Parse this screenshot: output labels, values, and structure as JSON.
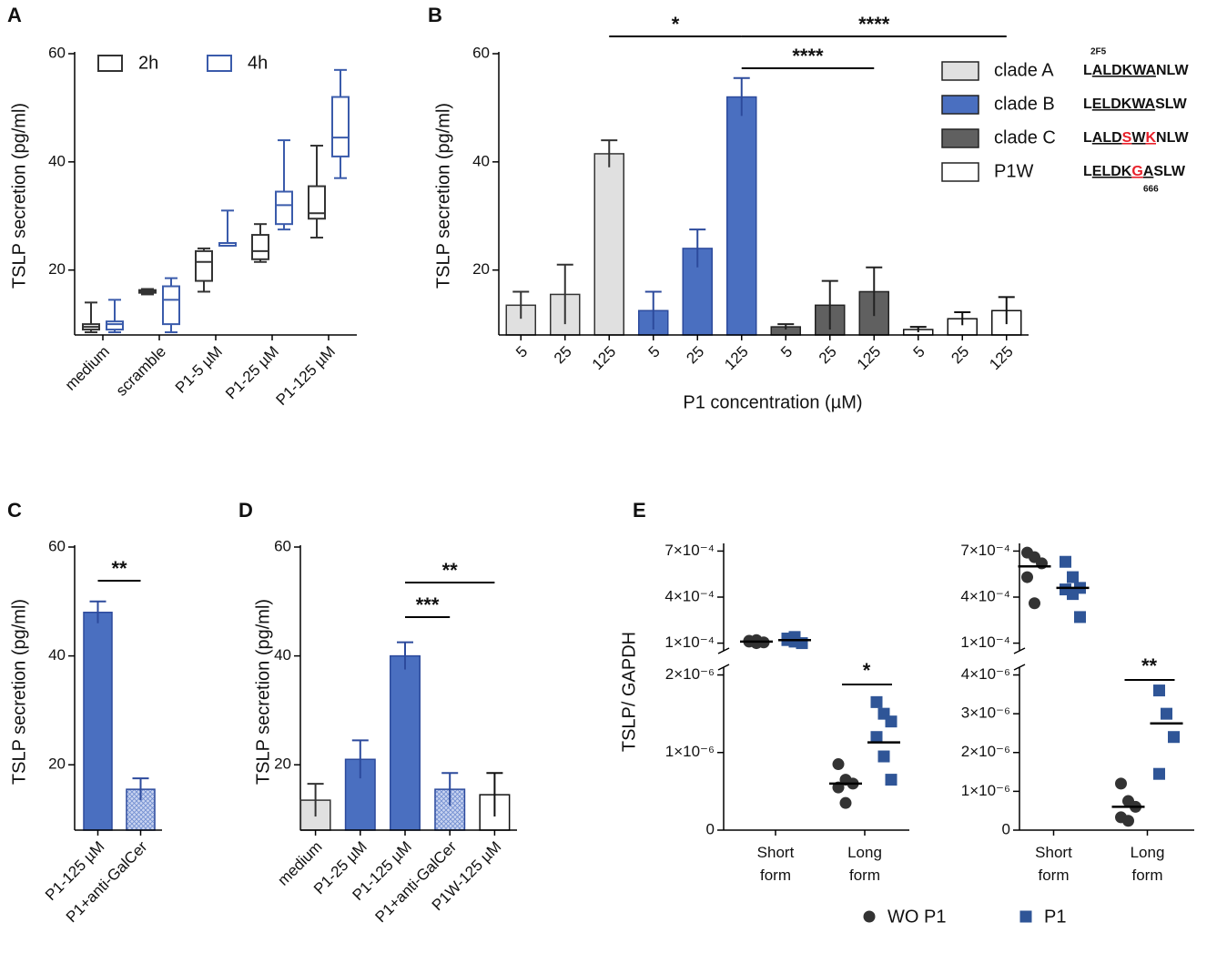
{
  "chart_data": [
    {
      "type": "box",
      "panel_label": "A",
      "ylabel": "TSLP secretion (pg/ml)",
      "categories": [
        "medium",
        "scramble",
        "P1-5 µM",
        "P1-25 µM",
        "P1-125 µM"
      ],
      "series": [
        {
          "name": "2h",
          "color": "#333333",
          "values": [
            [
              8.5,
              9,
              9.5,
              10,
              14
            ],
            [
              15.5,
              15.8,
              16,
              16.3,
              16.5
            ],
            [
              16,
              18,
              21.5,
              23.5,
              24
            ],
            [
              21.5,
              22,
              23.5,
              26.5,
              28.5
            ],
            [
              26,
              29.5,
              30.5,
              35.5,
              43
            ]
          ]
        },
        {
          "name": "4h",
          "color": "#3a5bab",
          "values": [
            [
              8.5,
              9,
              10,
              10.5,
              14.5
            ],
            [
              8.5,
              10,
              14.5,
              17,
              18.5
            ],
            [
              24.5,
              24.5,
              25,
              25,
              31
            ],
            [
              27.5,
              28.5,
              32,
              34.5,
              44
            ],
            [
              37,
              41,
              44.5,
              52,
              57
            ]
          ]
        }
      ],
      "ylim": [
        8,
        60
      ],
      "yticks": [
        20,
        40,
        60
      ]
    },
    {
      "type": "bar",
      "panel_label": "B",
      "ylabel": "TSLP secretion (pg/ml)",
      "xlabel": "P1 concentration (µM)",
      "categories": [
        "5",
        "25",
        "125",
        "5",
        "25",
        "125",
        "5",
        "25",
        "125",
        "5",
        "25",
        "125"
      ],
      "values": [
        13.5,
        15.5,
        41.5,
        12.5,
        24,
        52,
        9.5,
        13.5,
        16,
        9,
        11,
        12.5
      ],
      "errors": [
        2.5,
        5.5,
        2.5,
        3.5,
        3.5,
        3.5,
        0.5,
        4.5,
        4.5,
        0.5,
        1.2,
        2.5
      ],
      "colors": [
        "#e0e0e0",
        "#e0e0e0",
        "#e0e0e0",
        "#4a6fc0",
        "#4a6fc0",
        "#4a6fc0",
        "#606060",
        "#606060",
        "#606060",
        "#ffffff",
        "#ffffff",
        "#ffffff"
      ],
      "edge_colors": [
        "#333333",
        "#333333",
        "#333333",
        "#2c4a9c",
        "#2c4a9c",
        "#2c4a9c",
        "#222222",
        "#222222",
        "#222222",
        "#111111",
        "#111111",
        "#111111"
      ],
      "ylim": [
        8,
        60
      ],
      "yticks": [
        20,
        40,
        60
      ],
      "annotations": [
        {
          "label": "*",
          "from": 2,
          "to": 5
        },
        {
          "label": "****",
          "from": 5,
          "to": 11
        },
        {
          "label": "****",
          "from": 5,
          "to": 8
        }
      ],
      "legend": [
        {
          "name": "clade A",
          "color": "#e0e0e0",
          "sequence": [
            {
              "text": "L"
            },
            {
              "text": "ALDKWA",
              "underline": true
            },
            {
              "text": "NLW"
            }
          ]
        },
        {
          "name": "clade B",
          "color": "#4a6fc0",
          "sequence": [
            {
              "text": "L"
            },
            {
              "text": "ELDKWA",
              "underline": true
            },
            {
              "text": "SLW"
            }
          ]
        },
        {
          "name": "clade C",
          "color": "#606060",
          "sequence": [
            {
              "text": "L"
            },
            {
              "text": "ALD",
              "underline": true
            },
            {
              "text": "S",
              "underline": true,
              "color": "#e8202a"
            },
            {
              "text": "W",
              "underline": true
            },
            {
              "text": "K",
              "underline": true,
              "color": "#e8202a"
            },
            {
              "text": "NLW"
            }
          ]
        },
        {
          "name": "P1W",
          "color": "#ffffff",
          "sequence": [
            {
              "text": "L"
            },
            {
              "text": "ELDK",
              "underline": true
            },
            {
              "text": "G",
              "underline": true,
              "color": "#e8202a"
            },
            {
              "text": "A",
              "underline": true
            },
            {
              "text": "SLW"
            }
          ]
        }
      ],
      "epitope_labels": [
        "2F5",
        "666"
      ]
    },
    {
      "type": "bar",
      "panel_label": "C",
      "ylabel": "TSLP secretion (pg/ml)",
      "categories": [
        "P1-125 µM",
        "P1+anti-GalCer"
      ],
      "values": [
        48,
        15.5
      ],
      "errors": [
        2,
        2
      ],
      "colors": [
        "#4a6fc0",
        "#4a6fc0"
      ],
      "hatch": [
        false,
        true
      ],
      "edge_colors": [
        "#2c4a9c",
        "#2c4a9c"
      ],
      "ylim": [
        8,
        60
      ],
      "yticks": [
        20,
        40,
        60
      ],
      "annotations": [
        {
          "label": "**",
          "from": 0,
          "to": 1
        }
      ]
    },
    {
      "type": "bar",
      "panel_label": "D",
      "ylabel": "TSLP secretion (pg/ml)",
      "categories": [
        "medium",
        "P1-25 µM",
        "P1-125 µM",
        "P1+anti-GalCer",
        "P1W-125 µM"
      ],
      "values": [
        13.5,
        21,
        40,
        15.5,
        14.5
      ],
      "errors": [
        3,
        3.5,
        2.5,
        3,
        4
      ],
      "colors": [
        "#e0e0e0",
        "#4a6fc0",
        "#4a6fc0",
        "#4a6fc0",
        "#ffffff"
      ],
      "hatch": [
        false,
        false,
        false,
        true,
        false
      ],
      "edge_colors": [
        "#333333",
        "#2c4a9c",
        "#2c4a9c",
        "#2c4a9c",
        "#111111"
      ],
      "ylim": [
        8,
        60
      ],
      "yticks": [
        20,
        40,
        60
      ],
      "annotations": [
        {
          "label": "***",
          "from": 2,
          "to": 3
        },
        {
          "label": "**",
          "from": 2,
          "to": 4
        }
      ]
    },
    {
      "type": "dot",
      "panel_label": "E",
      "ylabel": "TSLP/ GAPDH",
      "categories": [
        "Short form",
        "Long form"
      ],
      "series": [
        {
          "name": "WO P1",
          "color": "#333333",
          "marker": "circle",
          "values": [
            [
              0.00011,
              0.00012,
              0.000105,
              0.000115,
              0.0001
            ],
            [
              8.5e-07,
              6.5e-07,
              6e-07,
              5.5e-07,
              3.5e-07
            ]
          ],
          "means": [
            0.00011,
            6e-07
          ]
        },
        {
          "name": "P1",
          "color": "#2f5597",
          "marker": "square",
          "values": [
            [
              0.00012,
              0.00014,
              0.0001,
              0.00013,
              0.00011
            ],
            [
              1.65e-06,
              1.5e-06,
              1.4e-06,
              1.2e-06,
              9.5e-07,
              6.5e-07
            ]
          ],
          "means": [
            0.00012,
            1.13e-06
          ]
        }
      ],
      "ylim_top": [
        5e-05,
        0.00075
      ],
      "yticks_top": [
        {
          "value": 0.0001,
          "label": "1×10⁻⁴"
        },
        {
          "value": 0.0004,
          "label": "4×10⁻⁴"
        },
        {
          "value": 0.0007,
          "label": "7×10⁻⁴"
        }
      ],
      "ylim_bottom": [
        0,
        2.1e-06
      ],
      "yticks_bottom": [
        0,
        {
          "value": 1e-06,
          "label": "1×10⁻⁶"
        },
        {
          "value": 2e-06,
          "label": "2×10⁻⁶"
        }
      ],
      "annotations": [
        {
          "label": "*",
          "category": 1
        }
      ]
    },
    {
      "type": "dot",
      "categories": [
        "Short form",
        "Long form"
      ],
      "series": [
        {
          "color": "#333333",
          "marker": "circle",
          "values": [
            [
              0.00069,
              0.00066,
              0.00062,
              0.00053,
              0.00036
            ],
            [
              1.2e-06,
              7.5e-07,
              6e-07,
              3.3e-07,
              2.4e-07
            ]
          ],
          "means": [
            0.0006,
            6e-07
          ]
        },
        {
          "color": "#2f5597",
          "marker": "square",
          "values": [
            [
              0.00063,
              0.00053,
              0.00046,
              0.00045,
              0.00042,
              0.00027
            ],
            [
              3.6e-06,
              3e-06,
              2.4e-06,
              1.45e-06
            ]
          ],
          "means": [
            0.00046,
            2.75e-06
          ]
        }
      ],
      "ylim_top": [
        5e-05,
        0.00075
      ],
      "yticks_top": [
        {
          "value": 0.0001,
          "label": "1×10⁻⁴"
        },
        {
          "value": 0.0004,
          "label": "4×10⁻⁴"
        },
        {
          "value": 0.0007,
          "label": "7×10⁻⁴"
        }
      ],
      "ylim_bottom": [
        0,
        4.2e-06
      ],
      "yticks_bottom": [
        0,
        {
          "value": 1e-06,
          "label": "1×10⁻⁶"
        },
        {
          "value": 2e-06,
          "label": "2×10⁻⁶"
        },
        {
          "value": 3e-06,
          "label": "3×10⁻⁶"
        },
        {
          "value": 4e-06,
          "label": "4×10⁻⁶"
        }
      ],
      "annotations": [
        {
          "label": "**",
          "category": 1
        }
      ]
    }
  ]
}
